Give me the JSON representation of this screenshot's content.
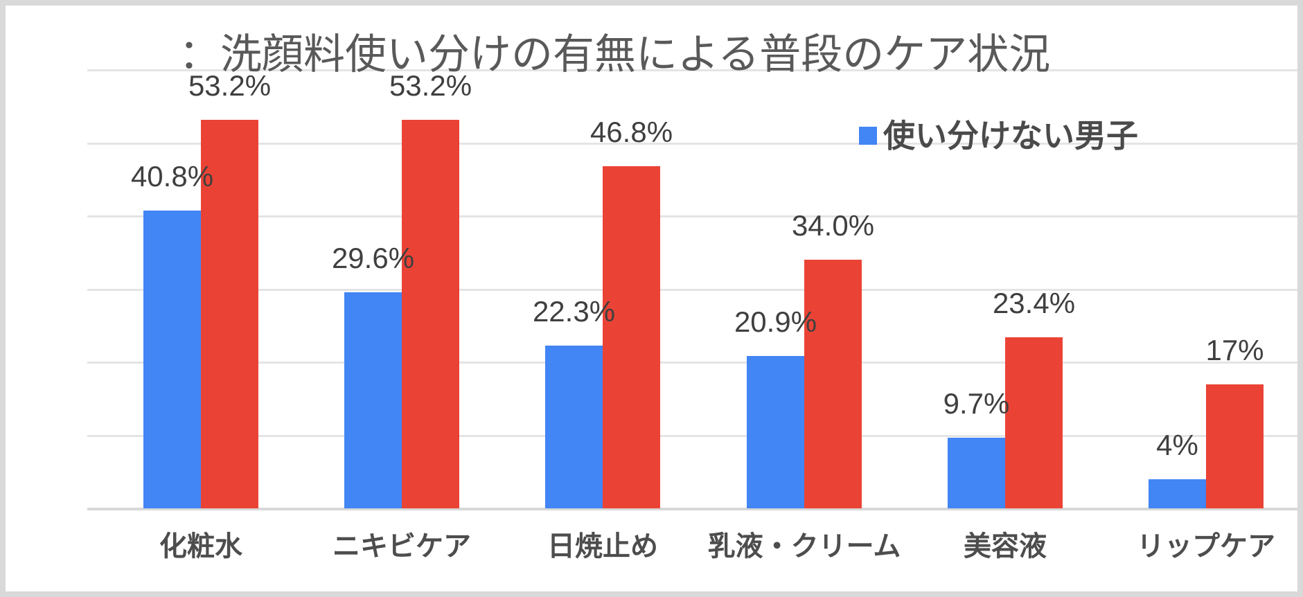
{
  "title": "：洗顔料使い分けの有無による普段のケア状況",
  "legend": {
    "items": [
      {
        "label": "使い分けない男子",
        "color": "#4285f4"
      }
    ]
  },
  "colors": {
    "series_blue": "#4285f4",
    "series_red": "#ea4335",
    "gridline": "#e4e4e4",
    "baseline": "#d8d8d8",
    "frame_border": "#d9d9d9",
    "title_text": "#595959",
    "value_text": "#3f3f3f",
    "axis_text": "#4d4d4d",
    "background": "#ffffff"
  },
  "chart_data": {
    "type": "bar",
    "title": "：洗顔料使い分けの有無による普段のケア状況",
    "categories": [
      "化粧水",
      "ニキビケア",
      "日焼止め",
      "乳液・クリーム",
      "美容液",
      "リップケア"
    ],
    "series": [
      {
        "name": "使い分けない男子",
        "color": "#4285f4",
        "values": [
          40.8,
          29.6,
          22.3,
          20.9,
          9.7,
          4
        ],
        "labels": [
          "40.8%",
          "29.6%",
          "22.3%",
          "20.9%",
          "9.7%",
          "4%"
        ]
      },
      {
        "name": "",
        "color": "#ea4335",
        "values": [
          53.2,
          53.2,
          46.8,
          34.0,
          23.4,
          17
        ],
        "labels": [
          "53.2%",
          "53.2%",
          "46.8%",
          "34.0%",
          "23.4%",
          "17%"
        ]
      }
    ],
    "ylabel": "",
    "xlabel": "",
    "ylim": [
      0,
      60
    ],
    "grid": true,
    "gridline_step_percent": 10,
    "legend_position": "top-right",
    "legend_visible_items": [
      "使い分けない男子"
    ]
  }
}
